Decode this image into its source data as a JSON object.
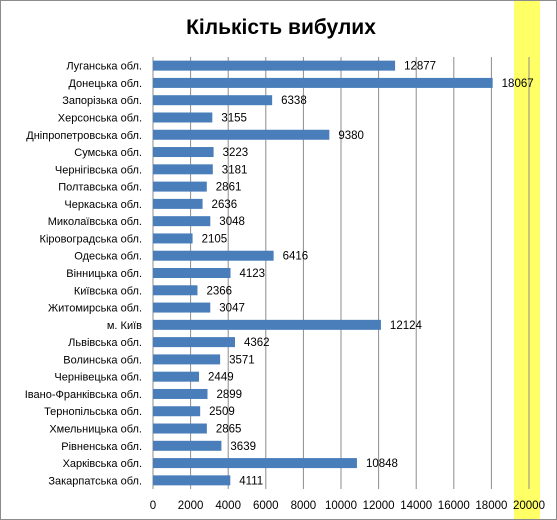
{
  "chart_data": {
    "type": "bar",
    "orientation": "horizontal",
    "title": "Кількість вибулих",
    "categories": [
      "Луганська обл.",
      "Донецька обл.",
      "Запорізька обл.",
      "Херсонська обл.",
      "Дніпропетровська обл.",
      "Сумська обл.",
      "Чернігівська обл.",
      "Полтавська обл.",
      "Черкаська обл.",
      "Миколаївська обл.",
      "Кіровоградська обл.",
      "Одеська обл.",
      "Вінницька обл.",
      "Київська обл.",
      "Житомирська обл.",
      "м. Київ",
      "Львівська обл.",
      "Волинська обл.",
      "Чернівецька обл.",
      "Івано-Франківська обл.",
      "Тернопільська обл.",
      "Хмельницька обл.",
      "Рівненська обл.",
      "Харківська обл.",
      "Закарпатська обл."
    ],
    "values": [
      12877,
      18067,
      6338,
      3155,
      9380,
      3223,
      3181,
      2861,
      2636,
      3048,
      2105,
      6416,
      4123,
      2366,
      3047,
      12124,
      4362,
      3571,
      2449,
      2899,
      2509,
      2865,
      3639,
      10848,
      4111
    ],
    "xlim": [
      0,
      20000
    ],
    "xticks": [
      0,
      2000,
      4000,
      6000,
      8000,
      10000,
      12000,
      14000,
      16000,
      18000,
      20000
    ],
    "grid": true,
    "legend": "none",
    "colors": {
      "bar": "#4a7ebb",
      "grid": "#8c8c8c",
      "highlight": "#ffff66"
    }
  }
}
